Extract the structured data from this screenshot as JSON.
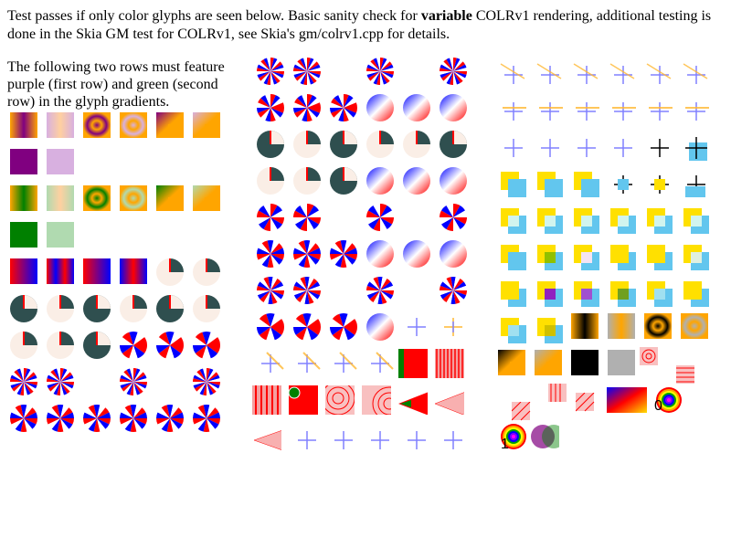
{
  "intro": {
    "before_bold": "Test passes if only color glyphs are seen below. Basic sanity check for ",
    "bold": "variable",
    "after_bold": " COLRv1 rendering, additional testing is done in the Skia GM test for COLRv1, see Skia's gm/colrv1.cpp for details."
  },
  "note": "The following two rows must feature purple (first row) and green (second row) in the glyph gradients.",
  "glyph_labels": {
    "zero": "0",
    "one": "1"
  },
  "colors": {
    "purple": "#800080",
    "light_purple": "#d8b0e0",
    "green": "#008000",
    "light_green": "#b0dab0",
    "orange": "#ffa500",
    "red": "#ff0000",
    "blue": "#0000ff",
    "dark_slate": "#2f4f4f",
    "yellow": "#ffe000",
    "sky": "#62c6ee",
    "cross_blue": "#8080ff",
    "cross_orange": "#ffb833"
  }
}
